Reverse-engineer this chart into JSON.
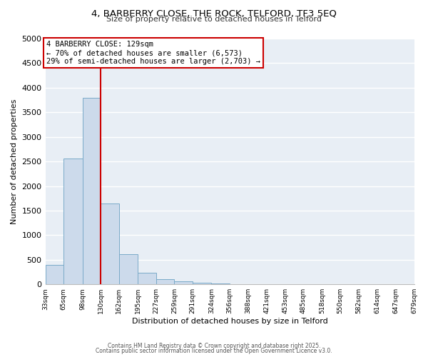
{
  "title": "4, BARBERRY CLOSE, THE ROCK, TELFORD, TF3 5EQ",
  "subtitle": "Size of property relative to detached houses in Telford",
  "xlabel": "Distribution of detached houses by size in Telford",
  "ylabel": "Number of detached properties",
  "bar_color": "#ccdaeb",
  "bar_edge_color": "#7aaac8",
  "bg_color": "#e8eef5",
  "grid_color": "white",
  "vline_x": 130,
  "vline_color": "#cc0000",
  "annotation_box_text": "4 BARBERRY CLOSE: 129sqm\n← 70% of detached houses are smaller (6,573)\n29% of semi-detached houses are larger (2,703) →",
  "annotation_box_color": "#cc0000",
  "bin_edges": [
    33,
    65,
    98,
    130,
    162,
    195,
    227,
    259,
    291,
    324,
    356,
    388,
    421,
    453,
    485,
    518,
    550,
    582,
    614,
    647,
    679
  ],
  "bin_values": [
    390,
    2560,
    3800,
    1650,
    620,
    240,
    110,
    55,
    30,
    15,
    5,
    0,
    0,
    0,
    0,
    0,
    0,
    0,
    0,
    0
  ],
  "ylim": [
    0,
    5000
  ],
  "yticks": [
    0,
    500,
    1000,
    1500,
    2000,
    2500,
    3000,
    3500,
    4000,
    4500,
    5000
  ],
  "footer_line1": "Contains HM Land Registry data © Crown copyright and database right 2025.",
  "footer_line2": "Contains public sector information licensed under the Open Government Licence v3.0."
}
